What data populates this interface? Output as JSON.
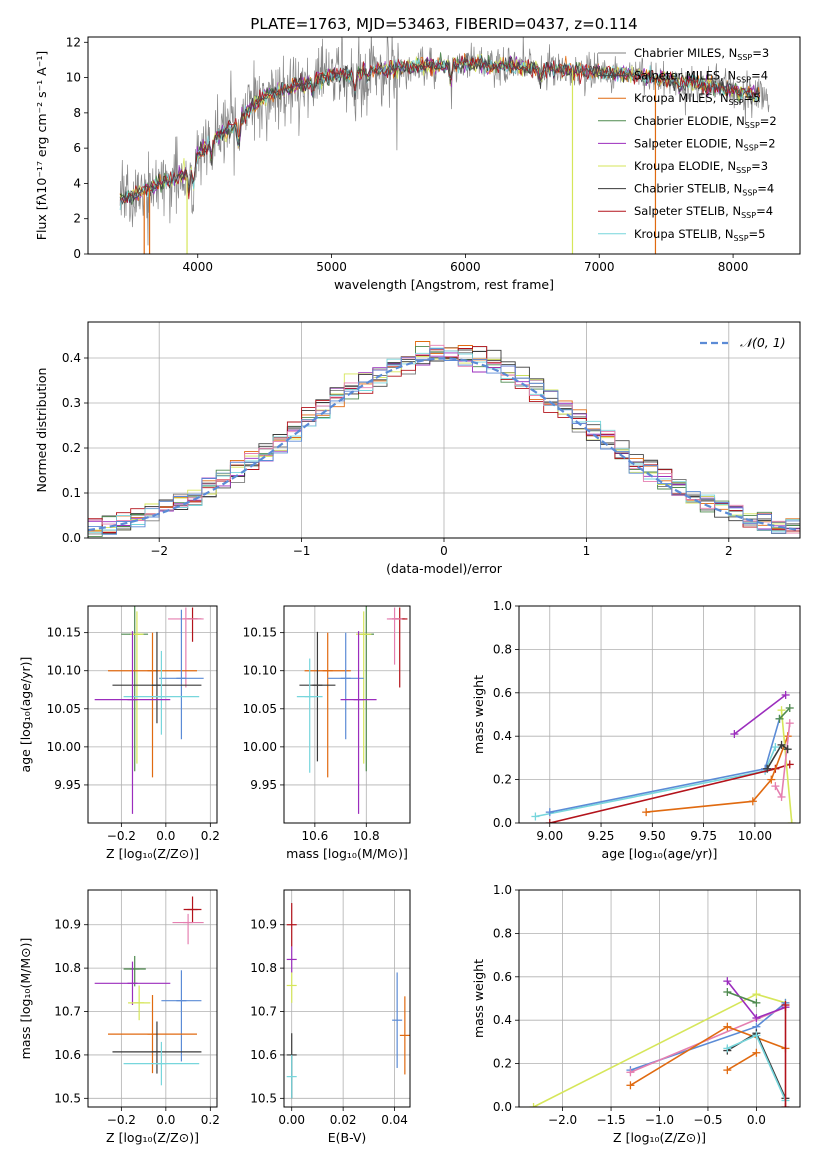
{
  "figure_title": "PLATE=1763, MJD=53463, FIBERID=0437, z=0.114",
  "colors": {
    "chabrier_miles": "#7f7f7f",
    "salpeter_miles": "#4a4a4a",
    "kroupa_miles": "#e06a10",
    "chabrier_elodie": "#4f8a4f",
    "salpeter_elodie": "#9b2dbd",
    "kroupa_elodie": "#d6e65a",
    "chabrier_stelib": "#3a3a3a",
    "salpeter_stelib": "#b3131b",
    "kroupa_stelib": "#77d6dc",
    "gauss": "#5b8bd6",
    "blue": "#5b8bd6",
    "pink": "#e57fb0"
  },
  "chart_data": [
    {
      "id": "spectrum",
      "type": "line",
      "xlabel": "wavelength [Angstrom, rest frame]",
      "ylabel": "Flux [fλ10⁻¹⁷ erg cm⁻² s⁻¹ A⁻¹]",
      "xlim": [
        3180,
        8500
      ],
      "ylim": [
        0,
        12.3
      ],
      "xticks": [
        4000,
        5000,
        6000,
        7000,
        8000
      ],
      "yticks": [
        0,
        2,
        4,
        6,
        8,
        10,
        12
      ],
      "legend_position": "right",
      "series": [
        {
          "name": "Chabrier MILES, N",
          "sub": "SSP",
          "suffix": "=3",
          "color": "#7f7f7f"
        },
        {
          "name": "Salpeter MILES, N",
          "sub": "SSP",
          "suffix": "=4",
          "color": "#4a4a4a"
        },
        {
          "name": "Kroupa MILES, N",
          "sub": "SSP",
          "suffix": "=5",
          "color": "#e06a10"
        },
        {
          "name": "Chabrier ELODIE, N",
          "sub": "SSP",
          "suffix": "=2",
          "color": "#4f8a4f"
        },
        {
          "name": "Salpeter ELODIE, N",
          "sub": "SSP",
          "suffix": "=2",
          "color": "#9b2dbd"
        },
        {
          "name": "Kroupa ELODIE, N",
          "sub": "SSP",
          "suffix": "=3",
          "color": "#d6e65a"
        },
        {
          "name": "Chabrier STELIB, N",
          "sub": "SSP",
          "suffix": "=4",
          "color": "#3a3a3a"
        },
        {
          "name": "Salpeter STELIB, N",
          "sub": "SSP",
          "suffix": "=4",
          "color": "#b3131b"
        },
        {
          "name": "Kroupa STELIB, N",
          "sub": "SSP",
          "suffix": "=5",
          "color": "#77d6dc"
        }
      ],
      "continuum": {
        "x": [
          3400,
          3500,
          3600,
          3700,
          3800,
          3900,
          4000,
          4100,
          4200,
          4300,
          4400,
          4500,
          4600,
          4800,
          5000,
          5200,
          5400,
          5600,
          5800,
          6000,
          6200,
          6400,
          6600,
          6800,
          7000,
          7200,
          7400,
          7600,
          7800,
          8000,
          8200
        ],
        "y": [
          3.0,
          3.2,
          3.6,
          4.0,
          4.2,
          4.5,
          5.6,
          6.4,
          6.9,
          7.4,
          8.3,
          8.9,
          9.2,
          9.7,
          10.1,
          10.3,
          10.5,
          10.6,
          10.7,
          10.8,
          10.7,
          10.6,
          10.5,
          10.4,
          10.3,
          10.2,
          10.0,
          9.8,
          9.6,
          9.3,
          9.0
        ]
      }
    },
    {
      "id": "residuals",
      "type": "line",
      "xlabel": "(data-model)/error",
      "ylabel": "Normed distribution",
      "xlim": [
        -2.5,
        2.5
      ],
      "ylim": [
        0,
        0.48
      ],
      "xticks": [
        -2,
        -1,
        0,
        1,
        2
      ],
      "yticks": [
        0.0,
        0.1,
        0.2,
        0.3,
        0.4
      ],
      "legend_position": "top-right",
      "gauss_label": "𝒩(0, 1)",
      "bin_width": 0.1
    },
    {
      "id": "age_vs_Z",
      "type": "scatter",
      "xlabel": "Z [log₁₀(Z/Z⊙)]",
      "ylabel": "age  [log₁₀(age/yr)]",
      "xlim": [
        -0.35,
        0.23
      ],
      "ylim": [
        9.9,
        10.185
      ],
      "xticks": [
        -0.2,
        0.0,
        0.2
      ],
      "yticks": [
        9.95,
        10.0,
        10.05,
        10.1,
        10.15
      ],
      "points": [
        {
          "x": -0.14,
          "y": 10.148,
          "xerr": 0.06,
          "yerr": [
            0.18,
            0.04
          ],
          "color": "#4f8a4f"
        },
        {
          "x": -0.13,
          "y": 10.148,
          "xerr": 0.03,
          "yerr": [
            0.17,
            0.03
          ],
          "color": "#d6e65a"
        },
        {
          "x": 0.12,
          "y": 10.168,
          "xerr": 0.04,
          "yerr": [
            0.03,
            0.015
          ],
          "color": "#b3131b"
        },
        {
          "x": 0.09,
          "y": 10.168,
          "xerr": 0.08,
          "yerr": [
            0.09,
            0.015
          ],
          "color": "#e57fb0"
        },
        {
          "x": -0.06,
          "y": 10.1,
          "xerr": 0.2,
          "yerr": [
            0.14,
            0.05
          ],
          "color": "#e06a10"
        },
        {
          "x": 0.07,
          "y": 10.09,
          "xerr": 0.1,
          "yerr": [
            0.08,
            0.09
          ],
          "color": "#5b8bd6"
        },
        {
          "x": -0.04,
          "y": 10.081,
          "xerr": 0.2,
          "yerr": [
            0.05,
            0.07
          ],
          "color": "#3a3a3a"
        },
        {
          "x": -0.02,
          "y": 10.066,
          "xerr": 0.17,
          "yerr": [
            0.05,
            0.06
          ],
          "color": "#77d6dc"
        },
        {
          "x": -0.15,
          "y": 10.062,
          "xerr": 0.17,
          "yerr": [
            0.15,
            0.09
          ],
          "color": "#9b2dbd"
        }
      ]
    },
    {
      "id": "age_vs_mass",
      "type": "scatter",
      "xlabel": "mass [log₁₀(M/M⊙)]",
      "ylabel": "",
      "xlim": [
        10.48,
        10.97
      ],
      "ylim": [
        9.9,
        10.185
      ],
      "xticks": [
        10.6,
        10.8
      ],
      "yticks": [
        9.95,
        10.0,
        10.05,
        10.1,
        10.15
      ],
      "points": [
        {
          "x": 10.8,
          "y": 10.148,
          "xerr": 0.03,
          "yerr": [
            0.18,
            0.04
          ],
          "color": "#4f8a4f"
        },
        {
          "x": 10.79,
          "y": 10.148,
          "xerr": 0.03,
          "yerr": [
            0.17,
            0.03
          ],
          "color": "#d6e65a"
        },
        {
          "x": 10.93,
          "y": 10.168,
          "xerr": 0.03,
          "yerr": [
            0.09,
            0.015
          ],
          "color": "#b3131b"
        },
        {
          "x": 10.91,
          "y": 10.168,
          "xerr": 0.03,
          "yerr": [
            0.06,
            0.015
          ],
          "color": "#e57fb0"
        },
        {
          "x": 10.65,
          "y": 10.1,
          "xerr": 0.09,
          "yerr": [
            0.14,
            0.05
          ],
          "color": "#e06a10"
        },
        {
          "x": 10.72,
          "y": 10.09,
          "xerr": 0.07,
          "yerr": [
            0.08,
            0.06
          ],
          "color": "#5b8bd6"
        },
        {
          "x": 10.61,
          "y": 10.081,
          "xerr": 0.07,
          "yerr": [
            0.1,
            0.07
          ],
          "color": "#3a3a3a"
        },
        {
          "x": 10.58,
          "y": 10.066,
          "xerr": 0.05,
          "yerr": [
            0.1,
            0.05
          ],
          "color": "#77d6dc"
        },
        {
          "x": 10.77,
          "y": 10.062,
          "xerr": 0.07,
          "yerr": [
            0.15,
            0.09
          ],
          "color": "#9b2dbd"
        }
      ]
    },
    {
      "id": "massweight_vs_age",
      "type": "line",
      "xlabel": "age  [log₁₀(age/yr)]",
      "ylabel": "mass weight",
      "xlim": [
        8.85,
        10.22
      ],
      "ylim": [
        0,
        1.0
      ],
      "xticks": [
        9.0,
        9.25,
        9.5,
        9.75,
        10.0
      ],
      "yticks": [
        0.0,
        0.2,
        0.4,
        0.6,
        0.8,
        1.0
      ],
      "series": [
        {
          "color": "#77d6dc",
          "x": [
            8.93,
            10.05,
            10.1
          ],
          "y": [
            0.03,
            0.24,
            0.35
          ]
        },
        {
          "color": "#5b8bd6",
          "x": [
            9.0,
            10.05,
            10.12
          ],
          "y": [
            0.05,
            0.25,
            0.48
          ]
        },
        {
          "color": "#b3131b",
          "x": [
            9.0,
            10.1,
            10.17
          ],
          "y": [
            0.0,
            0.25,
            0.27
          ]
        },
        {
          "color": "#e06a10",
          "x": [
            9.47,
            9.99,
            10.08,
            10.16
          ],
          "y": [
            0.05,
            0.1,
            0.2,
            0.4
          ]
        },
        {
          "color": "#9b2dbd",
          "x": [
            9.9,
            10.15
          ],
          "y": [
            0.41,
            0.59
          ]
        },
        {
          "color": "#d6e65a",
          "x": [
            10.13,
            10.18
          ],
          "y": [
            0.52,
            0.0
          ]
        },
        {
          "color": "#4f8a4f",
          "x": [
            10.12,
            10.17
          ],
          "y": [
            0.48,
            0.53
          ]
        },
        {
          "color": "#e57fb0",
          "x": [
            10.1,
            10.13,
            10.17
          ],
          "y": [
            0.17,
            0.12,
            0.46
          ]
        },
        {
          "color": "#3a3a3a",
          "x": [
            10.06,
            10.13,
            10.16
          ],
          "y": [
            0.25,
            0.36,
            0.34
          ]
        }
      ]
    },
    {
      "id": "mass_vs_Z",
      "type": "scatter",
      "xlabel": "Z [log₁₀(Z/Z⊙)]",
      "ylabel": "mass [log₁₀(M/M⊙)]",
      "xlim": [
        -0.35,
        0.23
      ],
      "ylim": [
        10.48,
        10.98
      ],
      "xticks": [
        -0.2,
        0.0,
        0.2
      ],
      "yticks": [
        10.5,
        10.6,
        10.7,
        10.8,
        10.9
      ],
      "points": [
        {
          "x": 0.12,
          "y": 10.935,
          "xerr": 0.04,
          "yerr": [
            0.03,
            0.03
          ],
          "color": "#b3131b"
        },
        {
          "x": 0.1,
          "y": 10.905,
          "xerr": 0.07,
          "yerr": [
            0.05,
            0.02
          ],
          "color": "#e57fb0"
        },
        {
          "x": -0.14,
          "y": 10.798,
          "xerr": 0.05,
          "yerr": [
            0.04,
            0.03
          ],
          "color": "#4f8a4f"
        },
        {
          "x": -0.15,
          "y": 10.765,
          "xerr": 0.17,
          "yerr": [
            0.05,
            0.05
          ],
          "color": "#9b2dbd"
        },
        {
          "x": -0.12,
          "y": 10.72,
          "xerr": 0.05,
          "yerr": [
            0.04,
            0.04
          ],
          "color": "#d6e65a"
        },
        {
          "x": 0.07,
          "y": 10.725,
          "xerr": 0.09,
          "yerr": [
            0.14,
            0.07
          ],
          "color": "#5b8bd6"
        },
        {
          "x": -0.06,
          "y": 10.648,
          "xerr": 0.2,
          "yerr": [
            0.09,
            0.09
          ],
          "color": "#e06a10"
        },
        {
          "x": -0.04,
          "y": 10.607,
          "xerr": 0.2,
          "yerr": [
            0.05,
            0.07
          ],
          "color": "#3a3a3a"
        },
        {
          "x": -0.02,
          "y": 10.58,
          "xerr": 0.17,
          "yerr": [
            0.05,
            0.05
          ],
          "color": "#77d6dc"
        }
      ]
    },
    {
      "id": "mass_vs_ebv",
      "type": "scatter",
      "xlabel": "E(B-V)",
      "ylabel": "",
      "xlim": [
        -0.003,
        0.046
      ],
      "ylim": [
        10.48,
        10.98
      ],
      "xticks": [
        0.0,
        0.02,
        0.04
      ],
      "yticks": [
        10.5,
        10.6,
        10.7,
        10.8,
        10.9
      ],
      "points": [
        {
          "x": 0.0,
          "y": 10.9,
          "xerr": 0.0,
          "yerr": [
            0.05,
            0.05
          ],
          "color": "#b3131b"
        },
        {
          "x": 0.0,
          "y": 10.82,
          "xerr": 0.0,
          "yerr": [
            0.03,
            0.03
          ],
          "color": "#9b2dbd"
        },
        {
          "x": 0.0,
          "y": 10.76,
          "xerr": 0.0,
          "yerr": [
            0.04,
            0.03
          ],
          "color": "#d6e65a"
        },
        {
          "x": 0.0,
          "y": 10.6,
          "xerr": 0.0,
          "yerr": [
            0.1,
            0.05
          ],
          "color": "#3a3a3a"
        },
        {
          "x": 0.0,
          "y": 10.55,
          "xerr": 0.0,
          "yerr": [
            0.05,
            0.05
          ],
          "color": "#77d6dc"
        },
        {
          "x": 0.041,
          "y": 10.68,
          "xerr": 0.0,
          "yerr": [
            0.11,
            0.11
          ],
          "color": "#5b8bd6"
        },
        {
          "x": 0.044,
          "y": 10.645,
          "xerr": 0.0,
          "yerr": [
            0.09,
            0.09
          ],
          "color": "#e06a10"
        }
      ]
    },
    {
      "id": "massweight_vs_Z",
      "type": "line",
      "xlabel": "Z [log₁₀(Z/Z⊙)]",
      "ylabel": "mass weight",
      "xlim": [
        -2.45,
        0.45
      ],
      "ylim": [
        0,
        1.0
      ],
      "xticks": [
        -2.0,
        -1.5,
        -1.0,
        -0.5,
        0.0
      ],
      "yticks": [
        0.0,
        0.2,
        0.4,
        0.6,
        0.8,
        1.0
      ],
      "series": [
        {
          "color": "#d6e65a",
          "x": [
            -2.3,
            0.0,
            0.3
          ],
          "y": [
            0.0,
            0.52,
            0.48
          ]
        },
        {
          "color": "#5b8bd6",
          "x": [
            -1.3,
            0.0,
            0.3
          ],
          "y": [
            0.17,
            0.37,
            0.48
          ]
        },
        {
          "color": "#e57fb0",
          "x": [
            -1.3,
            0.3
          ],
          "y": [
            0.16,
            0.46
          ]
        },
        {
          "color": "#e06a10",
          "x": [
            -1.3,
            -0.3,
            0.3
          ],
          "y": [
            0.1,
            0.37,
            0.27
          ]
        },
        {
          "color": "#e06a10",
          "x": [
            -0.3,
            0.0
          ],
          "y": [
            0.17,
            0.25
          ]
        },
        {
          "color": "#9b2dbd",
          "x": [
            -0.3,
            0.0,
            0.3
          ],
          "y": [
            0.58,
            0.41,
            0.46
          ]
        },
        {
          "color": "#4f8a4f",
          "x": [
            -0.3,
            0.0
          ],
          "y": [
            0.53,
            0.48
          ]
        },
        {
          "color": "#3a3a3a",
          "x": [
            -0.3,
            0.0,
            0.3
          ],
          "y": [
            0.26,
            0.34,
            0.04
          ]
        },
        {
          "color": "#77d6dc",
          "x": [
            -0.3,
            0.0,
            0.3
          ],
          "y": [
            0.27,
            0.33,
            0.03
          ]
        },
        {
          "color": "#b3131b",
          "x": [
            0.3,
            0.3
          ],
          "y": [
            0.0,
            0.47
          ]
        }
      ]
    }
  ]
}
